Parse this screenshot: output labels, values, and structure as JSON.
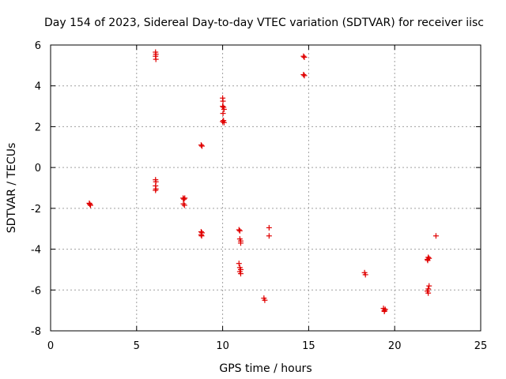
{
  "chart_data": {
    "type": "scatter",
    "title": "Day 154 of 2023, Sidereal Day-to-day VTEC variation (SDTVAR) for receiver iisc",
    "xlabel": "GPS time / hours",
    "ylabel": "SDTVAR / TECUs",
    "xlim": [
      0,
      25
    ],
    "ylim": [
      -8,
      6
    ],
    "xticks": [
      0,
      5,
      10,
      15,
      20,
      25
    ],
    "yticks": [
      -8,
      -6,
      -4,
      -2,
      0,
      2,
      4,
      6
    ],
    "grid": true,
    "marker": "+",
    "color": "#e00000",
    "points": [
      [
        2.25,
        -1.75
      ],
      [
        2.28,
        -1.8
      ],
      [
        2.32,
        -1.85
      ],
      [
        6.1,
        5.65
      ],
      [
        6.12,
        5.55
      ],
      [
        6.1,
        5.45
      ],
      [
        6.12,
        5.3
      ],
      [
        6.1,
        -0.6
      ],
      [
        6.12,
        -0.7
      ],
      [
        6.1,
        -0.9
      ],
      [
        6.12,
        -1.05
      ],
      [
        6.1,
        -1.12
      ],
      [
        7.7,
        -1.5
      ],
      [
        7.75,
        -1.55
      ],
      [
        7.8,
        -1.5
      ],
      [
        7.72,
        -1.78
      ],
      [
        7.78,
        -1.85
      ],
      [
        8.75,
        1.1
      ],
      [
        8.8,
        1.05
      ],
      [
        8.75,
        -3.15
      ],
      [
        8.8,
        -3.2
      ],
      [
        8.75,
        -3.3
      ],
      [
        8.78,
        -3.35
      ],
      [
        10.0,
        3.4
      ],
      [
        10.02,
        3.25
      ],
      [
        10.0,
        3.0
      ],
      [
        10.05,
        2.95
      ],
      [
        10.08,
        2.85
      ],
      [
        10.02,
        2.65
      ],
      [
        10.05,
        2.3
      ],
      [
        10.0,
        2.25
      ],
      [
        10.08,
        2.2
      ],
      [
        10.95,
        -3.05
      ],
      [
        11.0,
        -3.1
      ],
      [
        11.0,
        -3.5
      ],
      [
        11.05,
        -3.6
      ],
      [
        11.05,
        -3.7
      ],
      [
        10.95,
        -4.7
      ],
      [
        11.0,
        -4.9
      ],
      [
        11.05,
        -5.0
      ],
      [
        11.0,
        -5.1
      ],
      [
        11.05,
        -5.2
      ],
      [
        12.4,
        -6.4
      ],
      [
        12.45,
        -6.5
      ],
      [
        12.7,
        -2.95
      ],
      [
        12.7,
        -3.35
      ],
      [
        14.7,
        5.45
      ],
      [
        14.75,
        5.4
      ],
      [
        14.7,
        4.55
      ],
      [
        14.75,
        4.5
      ],
      [
        18.25,
        -5.15
      ],
      [
        18.3,
        -5.25
      ],
      [
        19.35,
        -6.9
      ],
      [
        19.4,
        -7.0
      ],
      [
        19.45,
        -6.95
      ],
      [
        19.4,
        -7.05
      ],
      [
        21.9,
        -4.5
      ],
      [
        21.95,
        -4.4
      ],
      [
        22.0,
        -4.45
      ],
      [
        21.92,
        -4.55
      ],
      [
        22.0,
        -5.8
      ],
      [
        21.95,
        -5.95
      ],
      [
        21.9,
        -6.05
      ],
      [
        21.95,
        -6.15
      ],
      [
        22.4,
        -3.35
      ]
    ]
  }
}
